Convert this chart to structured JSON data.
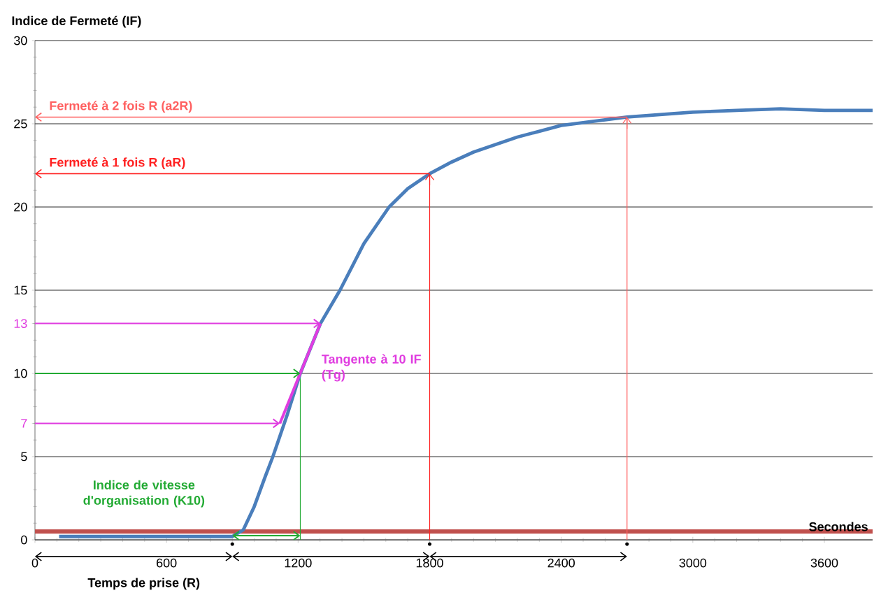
{
  "chart_data": {
    "type": "line",
    "ylabel": "Indice de Fermeté (IF)",
    "xlabel": "Secondes",
    "xlim": [
      0,
      3820
    ],
    "xticks": [
      0,
      600,
      1200,
      1800,
      2400,
      3000,
      3600
    ],
    "ylim": [
      0,
      30
    ],
    "yticks": [
      0,
      5,
      10,
      15,
      20,
      25,
      30,
      {
        "value": 7,
        "label": "7"
      },
      {
        "value": 13,
        "label": "13"
      }
    ],
    "grid": "y",
    "series": [
      {
        "color": "#4a7ebb",
        "x": [
          110,
          300,
          500,
          700,
          850,
          900,
          950,
          1000,
          1050,
          1085,
          1150,
          1210,
          1302,
          1391,
          1500,
          1615,
          1700,
          1800,
          1900,
          2000,
          2200,
          2400,
          2700,
          3000,
          3200,
          3400,
          3600,
          3820
        ],
        "values": [
          0.2,
          0.2,
          0.2,
          0.2,
          0.2,
          0.2,
          0.6,
          2,
          3.8,
          5,
          7.5,
          10,
          13,
          15,
          17.8,
          20,
          21.1,
          22,
          22.7,
          23.3,
          24.2,
          24.9,
          25.4,
          25.7,
          25.8,
          25.9,
          25.8,
          25.8
        ]
      },
      {
        "color": "#e03ce0",
        "x": [
          1117,
          1302
        ],
        "values": [
          7,
          13
        ]
      }
    ],
    "ref_lines": [
      {
        "axis": "y",
        "value": 0.5,
        "color": "#c0504d"
      },
      {
        "axis": "x",
        "value": 1210,
        "color": "#22aa33"
      },
      {
        "axis": "x",
        "value": 1800,
        "color": "#ff2020"
      },
      {
        "axis": "x",
        "value": 2700,
        "color": "#ff6060"
      }
    ],
    "annotations": [
      "Fermeté à 2 fois R (a2R)",
      "Fermeté à 1 fois R (aR)",
      "Tangente à 10 IF (Tg)",
      "Indice de vitesse d'organisation (K10)",
      "Temps de prise (R)"
    ]
  }
}
